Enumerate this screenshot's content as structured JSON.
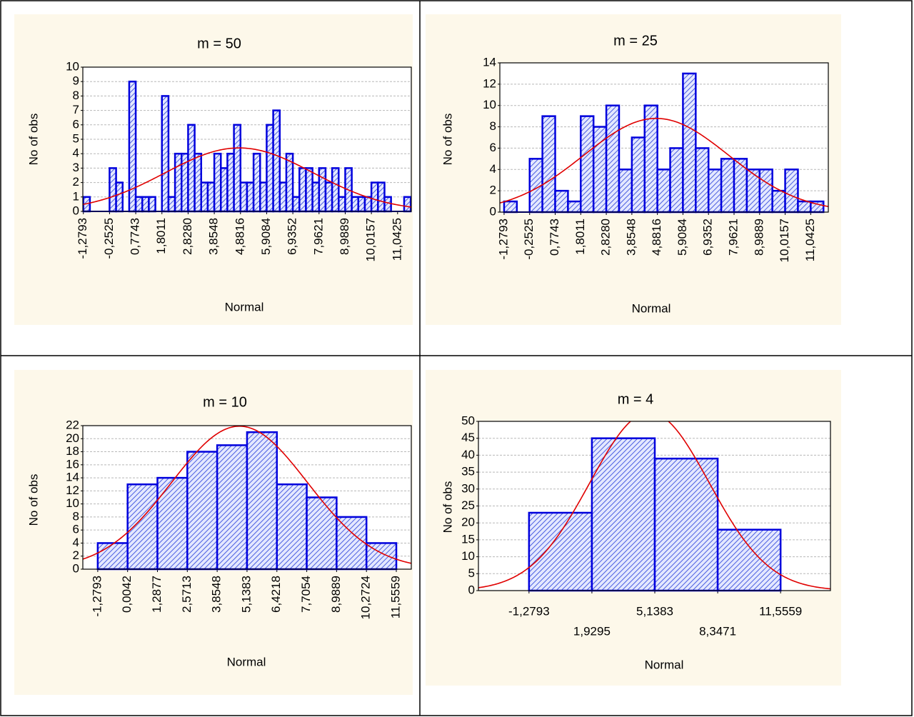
{
  "chart_data": [
    {
      "type": "histogram",
      "title": "m = 50",
      "xlabel": "Normal",
      "ylabel": "No of obs",
      "bins": [
        -1.2793,
        -1.0226,
        -0.7659,
        -0.5092,
        -0.2525,
        0.0042,
        0.2609,
        0.5176,
        0.7743,
        1.031,
        1.2877,
        1.5444,
        1.8011,
        2.0579,
        2.3146,
        2.5713,
        2.828,
        3.0847,
        3.3414,
        3.5981,
        3.8548,
        4.1115,
        4.3682,
        4.6249,
        4.8816,
        5.1383,
        5.395,
        5.6517,
        5.9084,
        6.1651,
        6.4218,
        6.6785,
        6.9352,
        7.1919,
        7.4486,
        7.7053,
        7.9621,
        8.2187,
        8.4755,
        8.7322,
        8.9889,
        9.2456,
        9.5023,
        9.759,
        10.0157,
        10.2724,
        10.5291,
        10.7858,
        11.0425,
        11.2992,
        11.5559
      ],
      "counts": [
        1,
        0,
        0,
        0,
        3,
        2,
        0,
        9,
        1,
        1,
        1,
        0,
        8,
        1,
        4,
        4,
        6,
        4,
        2,
        2,
        4,
        3,
        4,
        6,
        2,
        2,
        4,
        2,
        6,
        7,
        2,
        4,
        1,
        3,
        3,
        2,
        3,
        2,
        3,
        1,
        3,
        1,
        1,
        1,
        2,
        2,
        1,
        0,
        0,
        1
      ],
      "xlim": [
        -1.3,
        11.58
      ],
      "ylim": [
        0,
        10
      ],
      "xticks": [
        {
          "value": -1.2793,
          "label": "-1,2793"
        },
        {
          "value": -0.2525,
          "label": "-0,2525"
        },
        {
          "value": 0.7743,
          "label": "0,7743"
        },
        {
          "value": 1.8011,
          "label": "1,8011"
        },
        {
          "value": 2.828,
          "label": "2,8280"
        },
        {
          "value": 3.8548,
          "label": "3,8548"
        },
        {
          "value": 4.8816,
          "label": "4,8816"
        },
        {
          "value": 5.9084,
          "label": "5,9084"
        },
        {
          "value": 6.9352,
          "label": "6,9352"
        },
        {
          "value": 7.9621,
          "label": "7,9621"
        },
        {
          "value": 8.9889,
          "label": "8,9889"
        },
        {
          "value": 10.0157,
          "label": "10,0157"
        },
        {
          "value": 11.0425,
          "label": "11,0425"
        }
      ],
      "yticks": [
        0,
        1,
        2,
        3,
        4,
        5,
        6,
        7,
        8,
        9,
        10
      ],
      "grid": true,
      "color": "#0000dd",
      "fit_color": "#e00000"
    },
    {
      "type": "histogram",
      "title": "m = 25",
      "xlabel": "Normal",
      "ylabel": "No of obs",
      "bins": [
        -1.2793,
        -0.7659,
        -0.2525,
        0.2609,
        0.7743,
        1.2877,
        1.8011,
        2.3146,
        2.828,
        3.3414,
        3.8548,
        4.3682,
        4.8816,
        5.395,
        5.9084,
        6.4218,
        6.9352,
        7.4486,
        7.9621,
        8.4755,
        8.9889,
        9.5023,
        10.0157,
        10.5291,
        11.0425,
        11.5559
      ],
      "counts": [
        1,
        0,
        5,
        9,
        2,
        1,
        9,
        8,
        10,
        4,
        7,
        10,
        4,
        6,
        13,
        6,
        4,
        5,
        5,
        4,
        4,
        2,
        4,
        1,
        1
      ],
      "xlim": [
        -1.45,
        11.75
      ],
      "ylim": [
        0,
        14
      ],
      "xticks": [
        {
          "value": -1.2793,
          "label": "-1,2793"
        },
        {
          "value": -0.2525,
          "label": "-0,2525"
        },
        {
          "value": 0.7743,
          "label": "0,7743"
        },
        {
          "value": 1.8011,
          "label": "1,8011"
        },
        {
          "value": 2.828,
          "label": "2,8280"
        },
        {
          "value": 3.8548,
          "label": "3,8548"
        },
        {
          "value": 4.8816,
          "label": "4,8816"
        },
        {
          "value": 5.9084,
          "label": "5,9084"
        },
        {
          "value": 6.9352,
          "label": "6,9352"
        },
        {
          "value": 7.9621,
          "label": "7,9621"
        },
        {
          "value": 8.9889,
          "label": "8,9889"
        },
        {
          "value": 10.0157,
          "label": "10,0157"
        },
        {
          "value": 11.0425,
          "label": "11,0425"
        }
      ],
      "yticks": [
        0,
        2,
        4,
        6,
        8,
        10,
        12,
        14
      ],
      "grid": true,
      "color": "#0000dd",
      "fit_color": "#e00000"
    },
    {
      "type": "histogram",
      "title": "m = 10",
      "xlabel": "Normal",
      "ylabel": "No of obs",
      "bins": [
        -1.2793,
        0.0042,
        1.2877,
        2.5713,
        3.8548,
        5.1383,
        6.4218,
        7.7054,
        8.9889,
        10.2724,
        11.5559
      ],
      "counts": [
        4,
        13,
        14,
        18,
        19,
        21,
        13,
        11,
        8,
        4
      ],
      "xlim": [
        -1.92,
        12.2
      ],
      "ylim": [
        0,
        22
      ],
      "xticks": [
        {
          "value": -1.2793,
          "label": "-1,2793"
        },
        {
          "value": 0.0042,
          "label": "0,0042"
        },
        {
          "value": 1.2877,
          "label": "1,2877"
        },
        {
          "value": 2.5713,
          "label": "2,5713"
        },
        {
          "value": 3.8548,
          "label": "3,8548"
        },
        {
          "value": 5.1383,
          "label": "5,1383"
        },
        {
          "value": 6.4218,
          "label": "6,4218"
        },
        {
          "value": 7.7054,
          "label": "7,7054"
        },
        {
          "value": 8.9889,
          "label": "8,9889"
        },
        {
          "value": 10.2724,
          "label": "10,2724"
        },
        {
          "value": 11.5559,
          "label": "11,5559"
        }
      ],
      "yticks": [
        0,
        2,
        4,
        6,
        8,
        10,
        12,
        14,
        16,
        18,
        20,
        22
      ],
      "grid": true,
      "color": "#0000dd",
      "fit_color": "#e00000"
    },
    {
      "type": "histogram",
      "title": "m = 4",
      "xlabel": "Normal",
      "ylabel": "No of obs",
      "bins": [
        -1.2793,
        1.9295,
        5.1383,
        8.3471,
        11.5559
      ],
      "counts": [
        23,
        45,
        39,
        18
      ],
      "xlim": [
        -3.86,
        14.1
      ],
      "ylim": [
        0,
        50
      ],
      "xticks": [
        {
          "value": -1.2793,
          "label": "-1,2793"
        },
        {
          "value": 1.9295,
          "label": "1,9295"
        },
        {
          "value": 5.1383,
          "label": "5,1383"
        },
        {
          "value": 8.3471,
          "label": "8,3471"
        },
        {
          "value": 11.5559,
          "label": "11,5559"
        }
      ],
      "yticks": [
        0,
        5,
        10,
        15,
        20,
        25,
        30,
        35,
        40,
        45,
        50
      ],
      "grid": true,
      "color": "#0000dd",
      "fit_color": "#e00000"
    }
  ]
}
